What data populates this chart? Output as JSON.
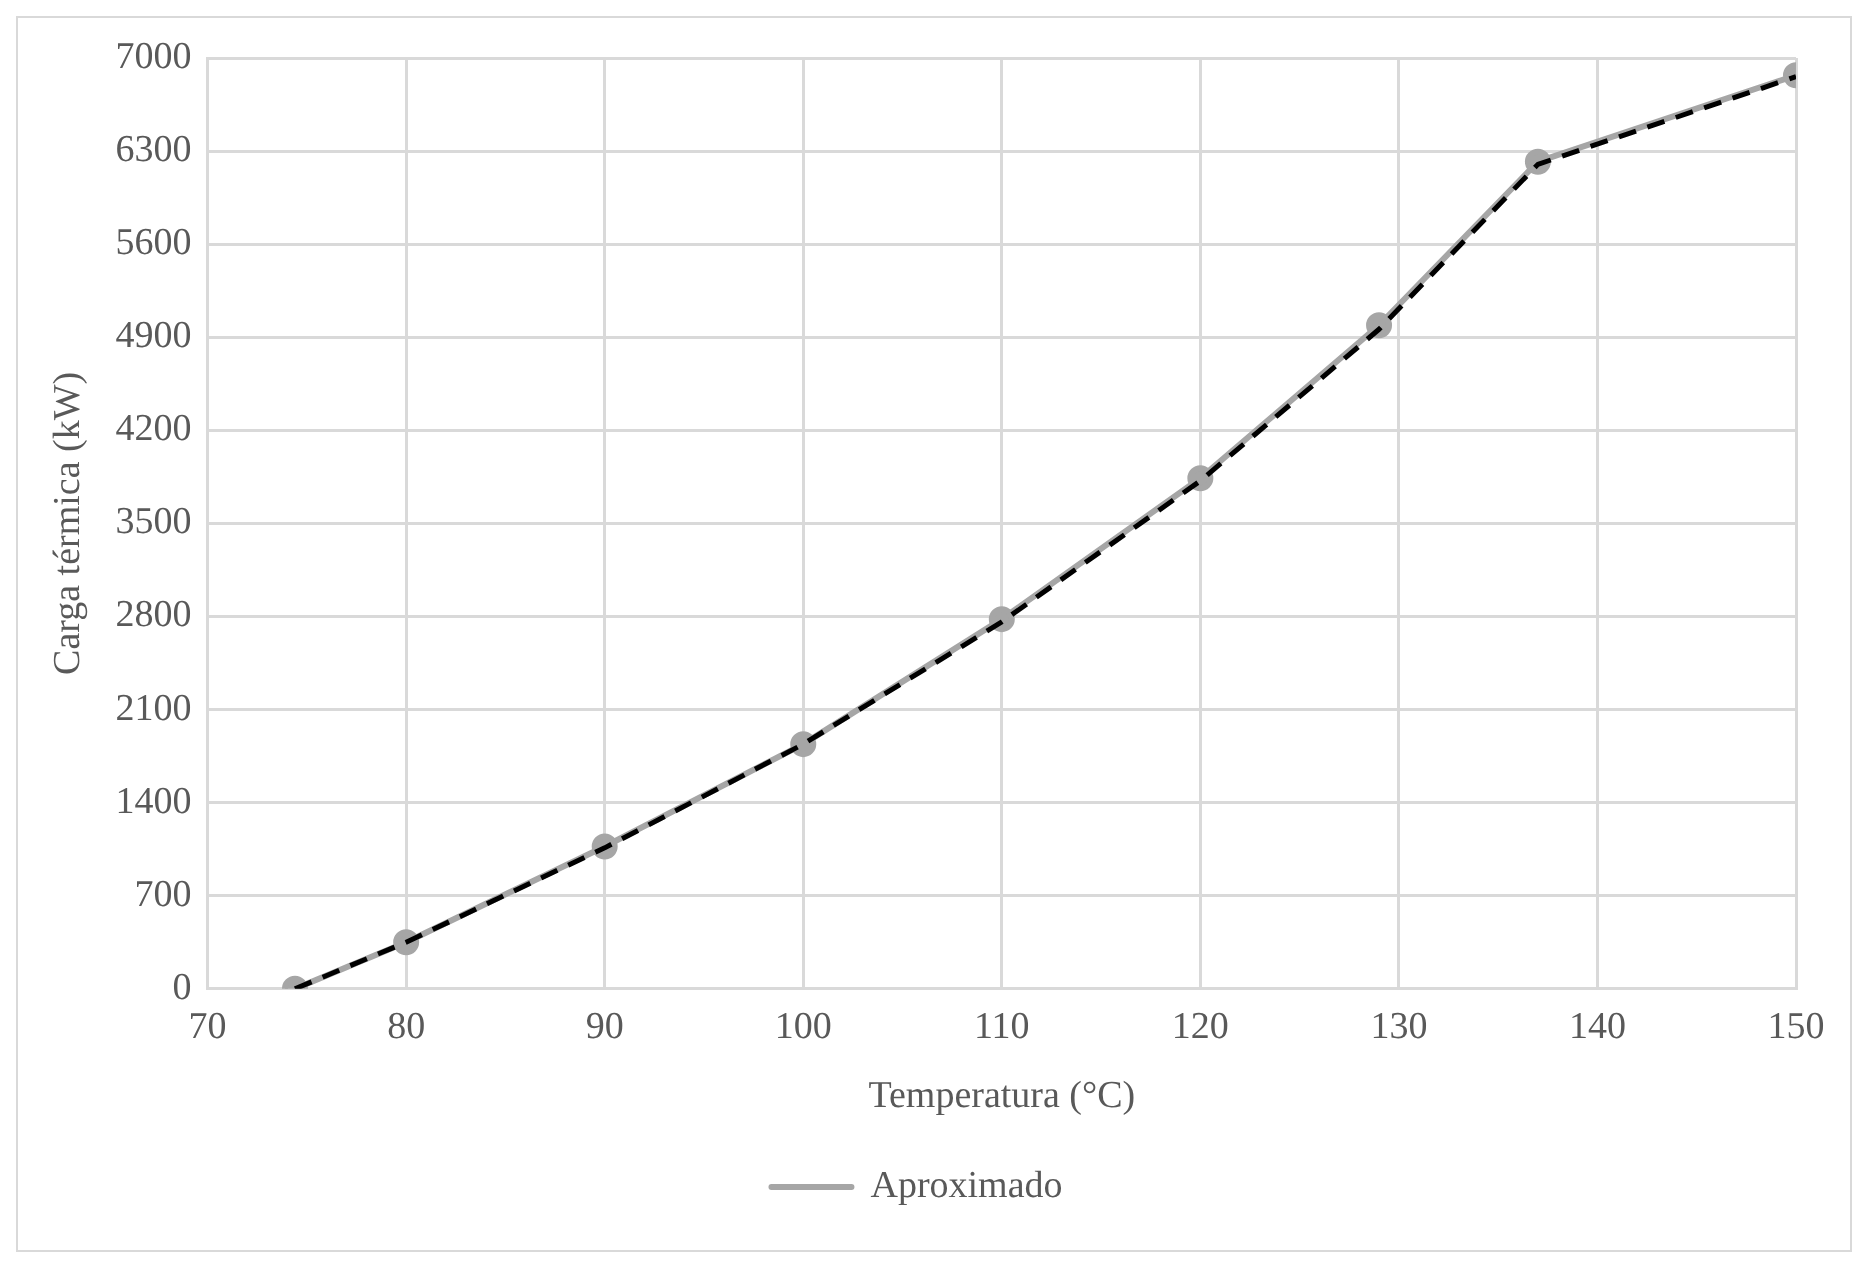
{
  "chart_data": {
    "type": "line",
    "xlabel": "Temperatura (°C)",
    "ylabel": "Carga térmica (kW)",
    "xlim": [
      70,
      150
    ],
    "xticks": [
      70,
      80,
      90,
      100,
      110,
      120,
      130,
      140,
      150
    ],
    "ylim": [
      0,
      7000
    ],
    "yticks": [
      0,
      700,
      1400,
      2100,
      2800,
      3500,
      4200,
      4900,
      5600,
      6300,
      7000
    ],
    "grid": true,
    "legend": "bottom",
    "series": [
      {
        "color": "#000000",
        "line_style": "dashed",
        "marker": "none",
        "x": [
          74.4,
          80,
          90,
          100,
          110,
          120,
          129,
          137,
          150
        ],
        "values": [
          0,
          350,
          1060,
          1840,
          2760,
          3820,
          4960,
          6200,
          6860
        ]
      },
      {
        "name": "Aproximado",
        "color": "#a6a6a6",
        "line_style": "solid",
        "marker": "circle",
        "x": [
          74.4,
          80,
          90,
          100,
          110,
          120,
          129,
          137,
          150
        ],
        "values": [
          0,
          350,
          1070,
          1840,
          2780,
          3840,
          4990,
          6220,
          6870
        ]
      }
    ]
  }
}
